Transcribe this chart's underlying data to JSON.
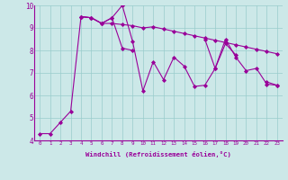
{
  "background_color": "#cce8e8",
  "line_color": "#990099",
  "grid_color": "#99cccc",
  "xlabel": "Windchill (Refroidissement éolien,°C)",
  "xlabel_color": "#990099",
  "ylabel_color": "#990099",
  "xlim": [
    -0.5,
    23.5
  ],
  "ylim": [
    4,
    10
  ],
  "yticks": [
    4,
    5,
    6,
    7,
    8,
    9,
    10
  ],
  "xticks": [
    0,
    1,
    2,
    3,
    4,
    5,
    6,
    7,
    8,
    9,
    10,
    11,
    12,
    13,
    14,
    15,
    16,
    17,
    18,
    19,
    20,
    21,
    22,
    23
  ],
  "series1": [
    4.3,
    4.3,
    4.8,
    5.3,
    9.5,
    9.45,
    9.2,
    9.2,
    9.15,
    9.1,
    9.0,
    9.05,
    8.95,
    8.85,
    8.75,
    8.65,
    8.55,
    8.45,
    8.35,
    8.25,
    8.15,
    8.05,
    7.95,
    7.85
  ],
  "series2": [
    null,
    null,
    null,
    null,
    9.5,
    9.45,
    9.2,
    9.45,
    10.0,
    8.4,
    6.2,
    7.5,
    6.7,
    7.7,
    7.3,
    6.4,
    6.45,
    7.2,
    8.5,
    7.7,
    7.1,
    7.2,
    6.5,
    6.45
  ],
  "series3_a": [
    [
      4,
      9.5
    ],
    [
      5,
      9.45
    ],
    [
      6,
      9.2
    ],
    [
      7,
      9.45
    ],
    [
      8,
      8.1
    ],
    [
      9,
      8.0
    ]
  ],
  "series3_b": [
    [
      16,
      8.5
    ],
    [
      17,
      7.2
    ],
    [
      18,
      8.3
    ],
    [
      19,
      7.8
    ]
  ],
  "series3_c": [
    [
      22,
      6.6
    ],
    [
      23,
      6.45
    ]
  ],
  "marker": "D",
  "marker_size": 2,
  "line_width": 0.8
}
